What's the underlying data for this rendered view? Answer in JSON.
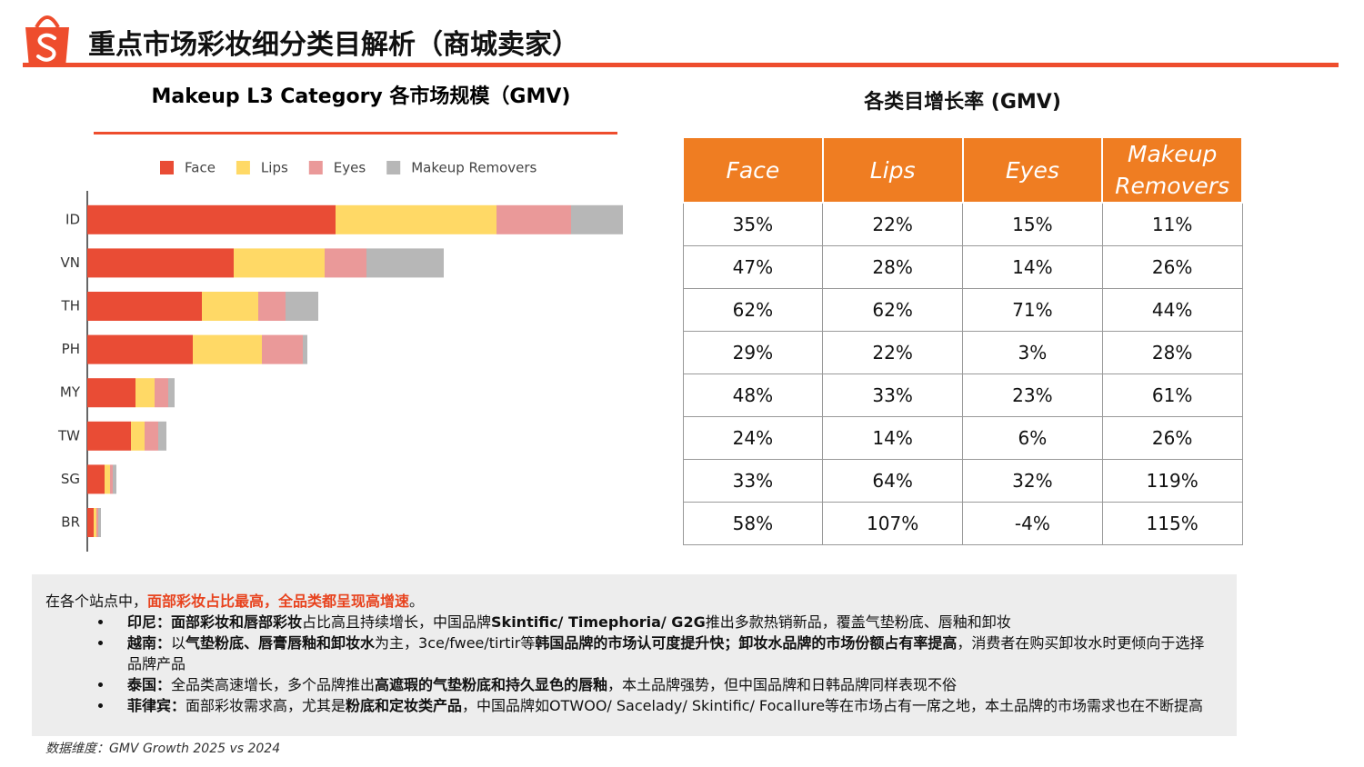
{
  "header": {
    "title": "重点市场彩妆细分类目解析（商城卖家）"
  },
  "chart_data": {
    "type": "bar",
    "orientation": "horizontal",
    "stacked": true,
    "title": "Makeup L3 Category 各市场规模（GMV)",
    "categories": [
      "ID",
      "VN",
      "TH",
      "PH",
      "MY",
      "TW",
      "SG",
      "BR"
    ],
    "series": [
      {
        "name": "Face",
        "color": "#e94c35",
        "values": [
          273,
          161,
          126,
          116,
          53,
          48,
          19,
          7
        ]
      },
      {
        "name": "Lips",
        "color": "#ffd966",
        "values": [
          177,
          100,
          62,
          76,
          21,
          15,
          6,
          3
        ]
      },
      {
        "name": "Eyes",
        "color": "#ea9999",
        "values": [
          82,
          46,
          30,
          45,
          15,
          15,
          3,
          2
        ]
      },
      {
        "name": "Makeup Removers",
        "color": "#b7b7b7",
        "values": [
          57,
          85,
          36,
          5,
          7,
          9,
          4,
          3
        ]
      }
    ],
    "xlim": [
      0,
      600
    ],
    "legend": "top"
  },
  "table": {
    "title": "各类目增长率 (GMV)",
    "header": [
      "Face",
      "Lips",
      "Eyes",
      "Makeup Removers"
    ],
    "rows": [
      [
        "35%",
        "22%",
        "15%",
        "11%"
      ],
      [
        "47%",
        "28%",
        "14%",
        "26%"
      ],
      [
        "62%",
        "62%",
        "71%",
        "44%"
      ],
      [
        "29%",
        "22%",
        "3%",
        "28%"
      ],
      [
        "48%",
        "33%",
        "23%",
        "61%"
      ],
      [
        "24%",
        "14%",
        "6%",
        "26%"
      ],
      [
        "33%",
        "64%",
        "32%",
        "119%"
      ],
      [
        "58%",
        "107%",
        "-4%",
        "115%"
      ]
    ]
  },
  "notes": {
    "intro": [
      {
        "text": "在各个站点中，"
      },
      {
        "text": "面部彩妆占比最高，全品类都呈现高增速",
        "emphasis": "red"
      },
      {
        "text": "。"
      }
    ],
    "bullets": [
      [
        {
          "text": "印尼：面部彩妆和唇部彩妆",
          "emphasis": "bold"
        },
        {
          "text": "占比高且持续增长，中国品牌"
        },
        {
          "text": "Skintific/ Timephoria/ G2G",
          "emphasis": "bold"
        },
        {
          "text": "推出多款热销新品，覆盖气垫粉底、唇釉和卸妆"
        }
      ],
      [
        {
          "text": "越南：",
          "emphasis": "bold"
        },
        {
          "text": "以"
        },
        {
          "text": "气垫粉底、唇膏唇釉和卸妆水",
          "emphasis": "bold"
        },
        {
          "text": "为主，3ce/fwee/tirtir等"
        },
        {
          "text": "韩国品牌的市场认可度提升快；卸妆水品牌的市场份额占有率提高",
          "emphasis": "bold"
        },
        {
          "text": "，消费者在购买卸妆水时更倾向于选择品牌产品"
        }
      ],
      [
        {
          "text": "泰国：",
          "emphasis": "bold"
        },
        {
          "text": "全品类高速增长，多个品牌推出"
        },
        {
          "text": "高遮瑕的气垫粉底和持久显色的唇釉",
          "emphasis": "bold"
        },
        {
          "text": "，本土品牌强势，但中国品牌和日韩品牌同样表现不俗"
        }
      ],
      [
        {
          "text": "菲律宾：",
          "emphasis": "bold"
        },
        {
          "text": "面部彩妆需求高，尤其是"
        },
        {
          "text": "粉底和定妆类产品",
          "emphasis": "bold"
        },
        {
          "text": "，中国品牌如OTWOO/ Sacelady/ Skintific/ Focallure等在市场占有一席之地，本土品牌的市场需求也在不断提高"
        }
      ]
    ]
  },
  "footnote": "数据维度：GMV Growth 2025 vs 2024"
}
